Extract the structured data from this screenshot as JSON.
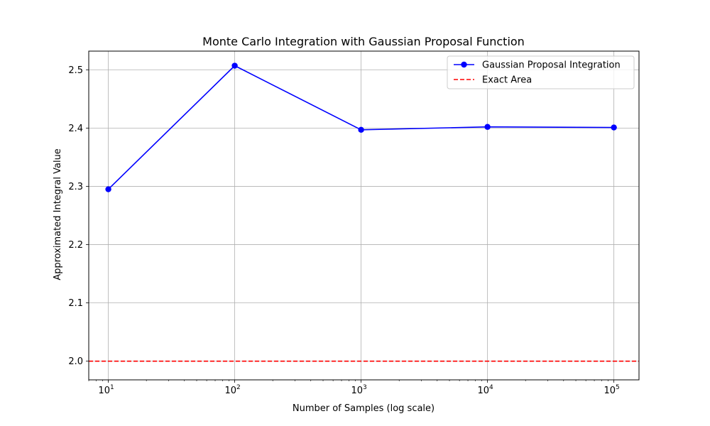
{
  "chart_data": {
    "type": "line",
    "title": "Monte Carlo Integration with Gaussian Proposal Function",
    "xlabel": "Number of Samples (log scale)",
    "ylabel": "Approximated Integral Value",
    "xscale": "log",
    "xlim": [
      7,
      158000
    ],
    "ylim": [
      1.968,
      2.532
    ],
    "grid": true,
    "legend_position": "top-right",
    "x_ticks": [
      {
        "value": 10,
        "base": "10",
        "exp": "1"
      },
      {
        "value": 100,
        "base": "10",
        "exp": "2"
      },
      {
        "value": 1000,
        "base": "10",
        "exp": "3"
      },
      {
        "value": 10000,
        "base": "10",
        "exp": "4"
      },
      {
        "value": 100000,
        "base": "10",
        "exp": "5"
      }
    ],
    "y_ticks": [
      {
        "value": 2.0,
        "label": "2.0"
      },
      {
        "value": 2.1,
        "label": "2.1"
      },
      {
        "value": 2.2,
        "label": "2.2"
      },
      {
        "value": 2.3,
        "label": "2.3"
      },
      {
        "value": 2.4,
        "label": "2.4"
      },
      {
        "value": 2.5,
        "label": "2.5"
      }
    ],
    "series": [
      {
        "name": "Gaussian Proposal Integration",
        "color": "#0000ff",
        "style": "solid-with-markers",
        "x": [
          10,
          100,
          1000,
          10000,
          100000
        ],
        "y": [
          2.295,
          2.507,
          2.397,
          2.402,
          2.401
        ]
      },
      {
        "name": "Exact Area",
        "color": "#ff0000",
        "style": "dashed-horizontal",
        "y": 2.0
      }
    ]
  }
}
